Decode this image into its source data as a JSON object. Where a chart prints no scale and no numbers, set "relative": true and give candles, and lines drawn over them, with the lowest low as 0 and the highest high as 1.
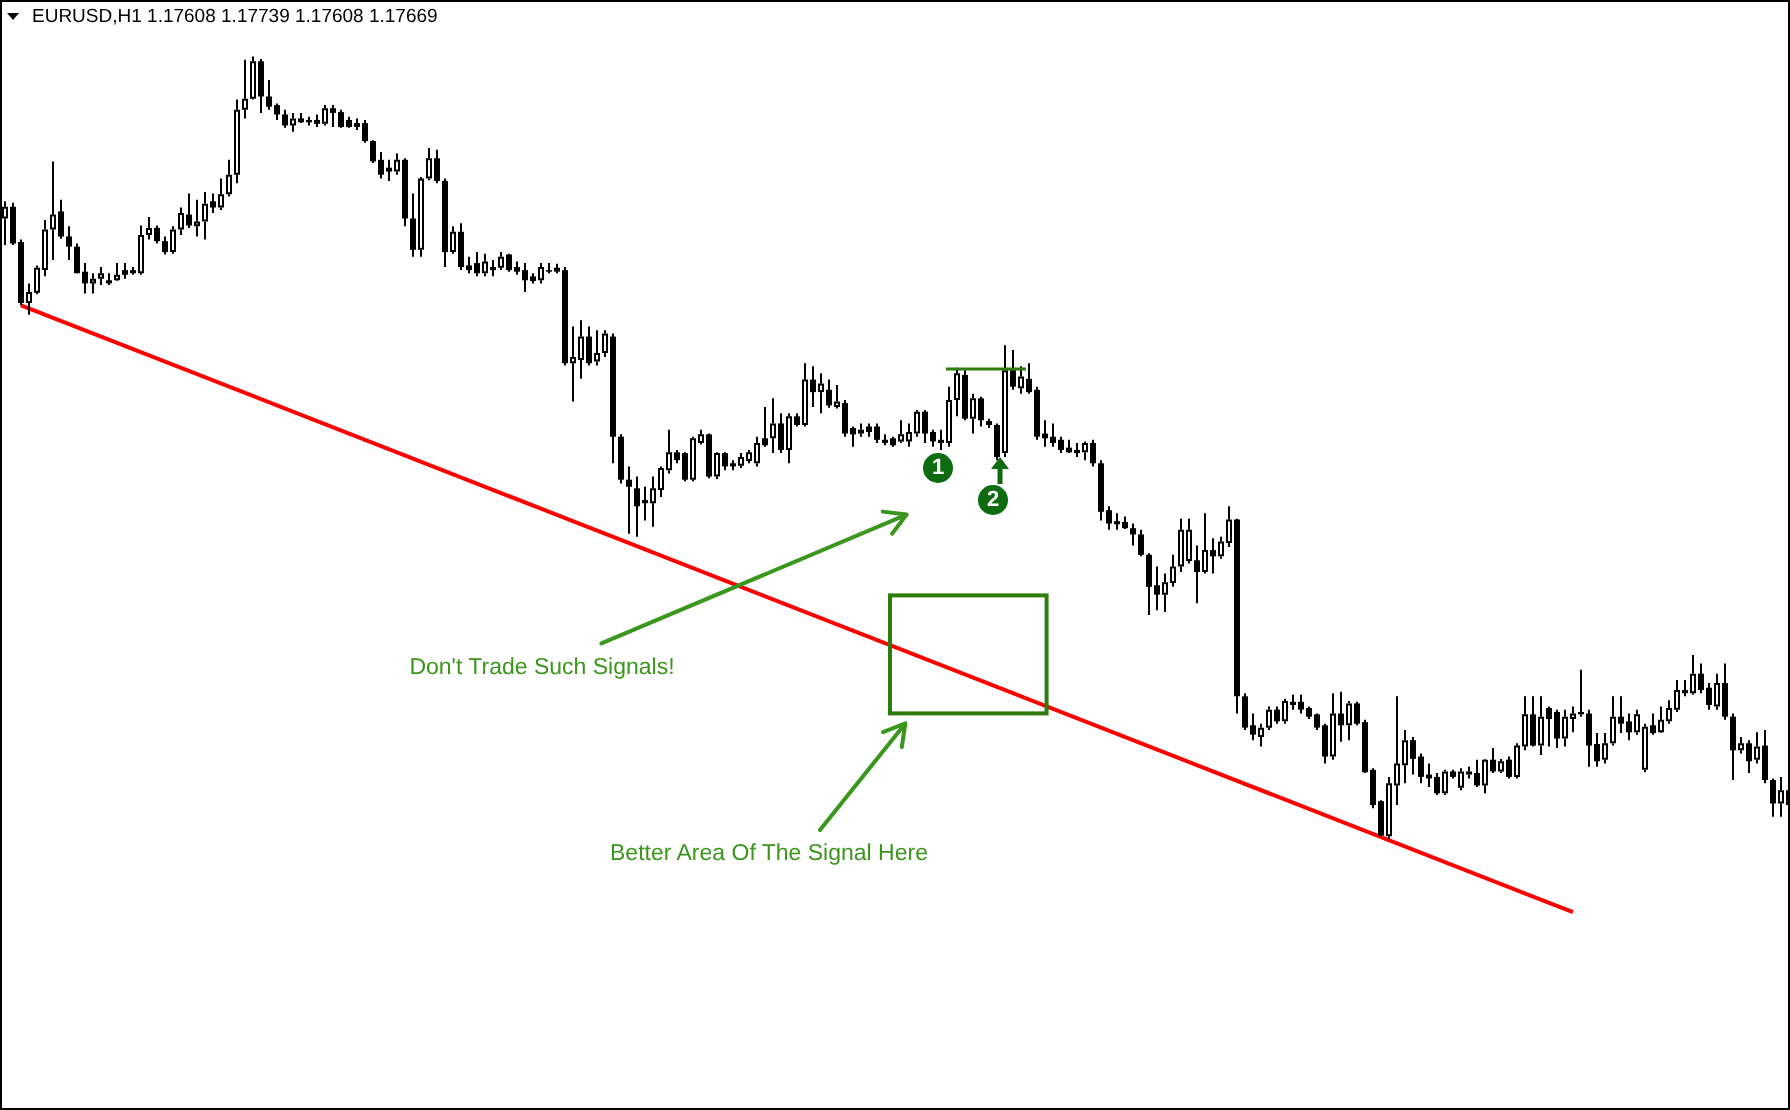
{
  "chart_data": {
    "type": "candlestick",
    "title": "EURUSD,H1 1.17608 1.17739 1.17608 1.17669",
    "relative": true,
    "tick_labels": false,
    "color": "#000000",
    "categories": [
      null,
      null,
      null,
      null,
      null,
      null,
      null,
      null,
      null,
      null,
      null,
      null,
      null,
      null,
      null,
      null,
      null,
      null,
      null,
      null,
      null,
      null,
      null,
      null,
      null,
      null,
      null,
      null,
      null,
      null,
      null,
      null,
      null,
      null,
      null,
      null,
      null,
      null,
      null,
      null,
      null,
      null,
      null,
      null,
      null,
      null,
      null,
      null,
      null,
      null,
      null,
      null,
      null,
      null,
      null,
      null,
      null,
      null,
      null,
      null,
      null,
      null,
      null,
      null,
      null,
      null,
      null,
      null,
      null,
      null,
      null,
      null,
      null,
      null,
      null,
      null,
      null,
      null,
      null,
      null,
      null,
      null,
      null,
      null,
      null,
      null,
      null,
      null,
      null,
      null,
      null,
      null,
      null,
      null,
      null,
      null,
      null,
      null,
      null,
      null,
      null,
      null,
      null,
      null,
      null,
      null,
      null,
      null,
      null,
      null,
      null,
      null,
      null,
      null,
      null,
      null,
      null,
      null,
      null,
      null,
      null,
      null,
      null,
      null,
      null,
      null,
      null,
      null,
      null,
      null,
      null,
      null,
      null,
      null,
      null,
      null,
      null,
      null,
      null,
      null,
      null,
      null,
      null,
      null,
      null,
      null,
      null,
      null,
      null,
      null,
      null,
      null,
      null,
      null,
      null,
      null,
      null,
      null,
      null,
      null,
      null,
      null,
      null,
      null,
      null,
      null,
      null,
      null,
      null,
      null,
      null,
      null,
      null,
      null,
      null,
      null,
      null,
      null,
      null,
      null,
      null,
      null,
      null,
      null,
      null,
      null,
      null,
      null,
      null,
      null,
      null,
      null,
      null,
      null,
      null,
      null,
      null,
      null,
      null,
      null,
      null,
      null,
      null,
      null,
      null,
      null,
      null,
      null,
      null,
      null,
      null,
      null,
      null,
      null,
      null,
      null,
      null,
      null,
      null,
      null,
      null,
      null,
      null,
      null
    ],
    "ohlc": [
      [
        0.793,
        0.815,
        0.759,
        0.808
      ],
      [
        0.808,
        0.813,
        0.759,
        0.761
      ],
      [
        0.763,
        0.766,
        0.682,
        0.685
      ],
      [
        0.685,
        0.71,
        0.67,
        0.699
      ],
      [
        0.698,
        0.733,
        0.696,
        0.73
      ],
      [
        0.727,
        0.791,
        0.719,
        0.779
      ],
      [
        0.779,
        0.866,
        0.74,
        0.798
      ],
      [
        0.802,
        0.817,
        0.767,
        0.77
      ],
      [
        0.77,
        0.783,
        0.74,
        0.757
      ],
      [
        0.757,
        0.761,
        0.723,
        0.723
      ],
      [
        0.725,
        0.736,
        0.697,
        0.71
      ],
      [
        0.71,
        0.723,
        0.697,
        0.716
      ],
      [
        0.716,
        0.731,
        0.708,
        0.723
      ],
      [
        0.714,
        0.723,
        0.708,
        0.71
      ],
      [
        0.714,
        0.736,
        0.713,
        0.721
      ],
      [
        0.727,
        0.736,
        0.716,
        0.721
      ],
      [
        0.727,
        0.731,
        0.721,
        0.723
      ],
      [
        0.723,
        0.784,
        0.721,
        0.772
      ],
      [
        0.772,
        0.795,
        0.766,
        0.781
      ],
      [
        0.781,
        0.784,
        0.761,
        0.764
      ],
      [
        0.764,
        0.77,
        0.747,
        0.75
      ],
      [
        0.75,
        0.783,
        0.748,
        0.779
      ],
      [
        0.779,
        0.807,
        0.772,
        0.8
      ],
      [
        0.798,
        0.825,
        0.781,
        0.784
      ],
      [
        0.783,
        0.817,
        0.77,
        0.789
      ],
      [
        0.789,
        0.827,
        0.766,
        0.812
      ],
      [
        0.815,
        0.825,
        0.8,
        0.807
      ],
      [
        0.807,
        0.844,
        0.804,
        0.824
      ],
      [
        0.824,
        0.868,
        0.821,
        0.849
      ],
      [
        0.849,
        0.945,
        0.838,
        0.932
      ],
      [
        0.932,
        0.996,
        0.921,
        0.946
      ],
      [
        0.946,
        1,
        0.945,
        0.994
      ],
      [
        0.994,
        0.997,
        0.928,
        0.949
      ],
      [
        0.949,
        0.97,
        0.932,
        0.936
      ],
      [
        0.938,
        0.94,
        0.919,
        0.926
      ],
      [
        0.926,
        0.932,
        0.909,
        0.912
      ],
      [
        0.912,
        0.928,
        0.904,
        0.921
      ],
      [
        0.921,
        0.928,
        0.915,
        0.916
      ],
      [
        0.919,
        0.923,
        0.912,
        0.916
      ],
      [
        0.919,
        0.926,
        0.91,
        0.914
      ],
      [
        0.914,
        0.938,
        0.912,
        0.934
      ],
      [
        0.934,
        0.938,
        0.91,
        0.928
      ],
      [
        0.929,
        0.932,
        0.909,
        0.91
      ],
      [
        0.919,
        0.923,
        0.909,
        0.91
      ],
      [
        0.91,
        0.921,
        0.906,
        0.915
      ],
      [
        0.915,
        0.919,
        0.89,
        0.892
      ],
      [
        0.892,
        0.893,
        0.864,
        0.866
      ],
      [
        0.868,
        0.878,
        0.844,
        0.849
      ],
      [
        0.858,
        0.868,
        0.841,
        0.853
      ],
      [
        0.853,
        0.876,
        0.849,
        0.868
      ],
      [
        0.868,
        0.87,
        0.783,
        0.793
      ],
      [
        0.793,
        0.825,
        0.744,
        0.753
      ],
      [
        0.753,
        0.846,
        0.744,
        0.844
      ],
      [
        0.844,
        0.883,
        0.842,
        0.87
      ],
      [
        0.87,
        0.881,
        0.838,
        0.841
      ],
      [
        0.841,
        0.844,
        0.731,
        0.75
      ],
      [
        0.75,
        0.783,
        0.748,
        0.776
      ],
      [
        0.776,
        0.787,
        0.727,
        0.731
      ],
      [
        0.733,
        0.744,
        0.723,
        0.727
      ],
      [
        0.736,
        0.75,
        0.719,
        0.723
      ],
      [
        0.723,
        0.748,
        0.719,
        0.738
      ],
      [
        0.731,
        0.74,
        0.719,
        0.727
      ],
      [
        0.73,
        0.75,
        0.727,
        0.744
      ],
      [
        0.747,
        0.748,
        0.725,
        0.727
      ],
      [
        0.731,
        0.738,
        0.721,
        0.725
      ],
      [
        0.727,
        0.736,
        0.699,
        0.714
      ],
      [
        0.719,
        0.723,
        0.71,
        0.713
      ],
      [
        0.714,
        0.736,
        0.71,
        0.731
      ],
      [
        0.727,
        0.736,
        0.723,
        0.725
      ],
      [
        0.73,
        0.735,
        0.723,
        0.725
      ],
      [
        0.727,
        0.731,
        0.605,
        0.608
      ],
      [
        0.608,
        0.655,
        0.559,
        0.616
      ],
      [
        0.612,
        0.663,
        0.588,
        0.642
      ],
      [
        0.642,
        0.655,
        0.605,
        0.608
      ],
      [
        0.61,
        0.65,
        0.605,
        0.621
      ],
      [
        0.621,
        0.65,
        0.616,
        0.646
      ],
      [
        0.642,
        0.646,
        0.48,
        0.514
      ],
      [
        0.514,
        0.517,
        0.454,
        0.459
      ],
      [
        0.459,
        0.476,
        0.39,
        0.45
      ],
      [
        0.448,
        0.463,
        0.386,
        0.425
      ],
      [
        0.433,
        0.45,
        0.407,
        0.429
      ],
      [
        0.429,
        0.463,
        0.399,
        0.448
      ],
      [
        0.446,
        0.476,
        0.437,
        0.474
      ],
      [
        0.471,
        0.523,
        0.467,
        0.494
      ],
      [
        0.494,
        0.497,
        0.48,
        0.484
      ],
      [
        0.493,
        0.494,
        0.457,
        0.459
      ],
      [
        0.459,
        0.514,
        0.457,
        0.512
      ],
      [
        0.506,
        0.523,
        0.504,
        0.517
      ],
      [
        0.517,
        0.518,
        0.461,
        0.463
      ],
      [
        0.463,
        0.494,
        0.46,
        0.493
      ],
      [
        0.493,
        0.494,
        0.471,
        0.476
      ],
      [
        0.48,
        0.484,
        0.471,
        0.476
      ],
      [
        0.477,
        0.493,
        0.474,
        0.488
      ],
      [
        0.483,
        0.497,
        0.48,
        0.494
      ],
      [
        0.48,
        0.514,
        0.476,
        0.506
      ],
      [
        0.512,
        0.552,
        0.501,
        0.503
      ],
      [
        0.512,
        0.563,
        0.493,
        0.531
      ],
      [
        0.531,
        0.544,
        0.493,
        0.497
      ],
      [
        0.497,
        0.544,
        0.48,
        0.54
      ],
      [
        0.54,
        0.544,
        0.527,
        0.529
      ],
      [
        0.529,
        0.608,
        0.527,
        0.587
      ],
      [
        0.587,
        0.604,
        0.552,
        0.571
      ],
      [
        0.571,
        0.595,
        0.544,
        0.582
      ],
      [
        0.574,
        0.587,
        0.551,
        0.554
      ],
      [
        0.552,
        0.58,
        0.55,
        0.559
      ],
      [
        0.557,
        0.561,
        0.514,
        0.518
      ],
      [
        0.525,
        0.527,
        0.501,
        0.517
      ],
      [
        0.518,
        0.531,
        0.514,
        0.523
      ],
      [
        0.527,
        0.531,
        0.514,
        0.52
      ],
      [
        0.527,
        0.531,
        0.506,
        0.51
      ],
      [
        0.51,
        0.517,
        0.503,
        0.506
      ],
      [
        0.512,
        0.514,
        0.501,
        0.503
      ],
      [
        0.508,
        0.535,
        0.506,
        0.517
      ],
      [
        0.508,
        0.531,
        0.501,
        0.52
      ],
      [
        0.518,
        0.548,
        0.514,
        0.546
      ],
      [
        0.546,
        0.548,
        0.506,
        0.518
      ],
      [
        0.52,
        0.523,
        0.501,
        0.508
      ],
      [
        0.51,
        0.523,
        0.497,
        0.506
      ],
      [
        0.506,
        0.578,
        0.501,
        0.561
      ],
      [
        0.561,
        0.602,
        0.54,
        0.595
      ],
      [
        0.593,
        0.599,
        0.535,
        0.537
      ],
      [
        0.537,
        0.569,
        0.518,
        0.563
      ],
      [
        0.563,
        0.565,
        0.527,
        0.535
      ],
      [
        0.534,
        0.537,
        0.525,
        0.529
      ],
      [
        0.529,
        0.531,
        0.484,
        0.488
      ],
      [
        0.493,
        0.631,
        0.488,
        0.599
      ],
      [
        0.599,
        0.625,
        0.574,
        0.578
      ],
      [
        0.576,
        0.604,
        0.569,
        0.591
      ],
      [
        0.588,
        0.608,
        0.569,
        0.571
      ],
      [
        0.574,
        0.578,
        0.51,
        0.514
      ],
      [
        0.518,
        0.535,
        0.501,
        0.512
      ],
      [
        0.514,
        0.531,
        0.501,
        0.506
      ],
      [
        0.51,
        0.514,
        0.493,
        0.497
      ],
      [
        0.5,
        0.51,
        0.493,
        0.494
      ],
      [
        0.497,
        0.506,
        0.488,
        0.493
      ],
      [
        0.494,
        0.508,
        0.484,
        0.506
      ],
      [
        0.506,
        0.51,
        0.476,
        0.48
      ],
      [
        0.48,
        0.484,
        0.407,
        0.418
      ],
      [
        0.42,
        0.425,
        0.395,
        0.403
      ],
      [
        0.406,
        0.416,
        0.395,
        0.402
      ],
      [
        0.405,
        0.412,
        0.396,
        0.397
      ],
      [
        0.397,
        0.403,
        0.375,
        0.389
      ],
      [
        0.389,
        0.395,
        0.361,
        0.363
      ],
      [
        0.363,
        0.365,
        0.286,
        0.322
      ],
      [
        0.324,
        0.348,
        0.292,
        0.312
      ],
      [
        0.312,
        0.339,
        0.29,
        0.328
      ],
      [
        0.327,
        0.363,
        0.322,
        0.348
      ],
      [
        0.348,
        0.409,
        0.341,
        0.395
      ],
      [
        0.355,
        0.409,
        0.352,
        0.395
      ],
      [
        0.356,
        0.375,
        0.301,
        0.341
      ],
      [
        0.341,
        0.416,
        0.339,
        0.369
      ],
      [
        0.369,
        0.384,
        0.339,
        0.361
      ],
      [
        0.361,
        0.386,
        0.358,
        0.38
      ],
      [
        0.378,
        0.425,
        0.373,
        0.408
      ],
      [
        0.408,
        0.409,
        0.16,
        0.182
      ],
      [
        0.182,
        0.186,
        0.139,
        0.142
      ],
      [
        0.145,
        0.16,
        0.126,
        0.133
      ],
      [
        0.13,
        0.147,
        0.118,
        0.142
      ],
      [
        0.142,
        0.169,
        0.139,
        0.165
      ],
      [
        0.165,
        0.169,
        0.147,
        0.15
      ],
      [
        0.15,
        0.179,
        0.147,
        0.176
      ],
      [
        0.175,
        0.184,
        0.165,
        0.171
      ],
      [
        0.175,
        0.184,
        0.16,
        0.165
      ],
      [
        0.167,
        0.169,
        0.153,
        0.156
      ],
      [
        0.159,
        0.16,
        0.139,
        0.142
      ],
      [
        0.145,
        0.147,
        0.096,
        0.105
      ],
      [
        0.105,
        0.186,
        0.101,
        0.16
      ],
      [
        0.16,
        0.188,
        0.124,
        0.145
      ],
      [
        0.145,
        0.176,
        0.126,
        0.173
      ],
      [
        0.173,
        0.175,
        0.145,
        0.147
      ],
      [
        0.149,
        0.152,
        0.084,
        0.085
      ],
      [
        0.088,
        0.09,
        0.039,
        0.043
      ],
      [
        0.048,
        0.049,
        0.003,
        0.004
      ],
      [
        0.003,
        0.079,
        0,
        0.071
      ],
      [
        0.068,
        0.182,
        0.043,
        0.096
      ],
      [
        0.094,
        0.139,
        0.071,
        0.126
      ],
      [
        0.126,
        0.13,
        0.082,
        0.102
      ],
      [
        0.105,
        0.109,
        0.071,
        0.079
      ],
      [
        0.082,
        0.096,
        0.066,
        0.077
      ],
      [
        0.079,
        0.084,
        0.056,
        0.058
      ],
      [
        0.058,
        0.088,
        0.056,
        0.086
      ],
      [
        0.086,
        0.088,
        0.077,
        0.079
      ],
      [
        0.065,
        0.09,
        0.062,
        0.086
      ],
      [
        0.082,
        0.092,
        0.077,
        0.086
      ],
      [
        0.084,
        0.101,
        0.066,
        0.068
      ],
      [
        0.068,
        0.102,
        0.058,
        0.101
      ],
      [
        0.101,
        0.116,
        0.084,
        0.086
      ],
      [
        0.086,
        0.102,
        0.084,
        0.099
      ],
      [
        0.101,
        0.105,
        0.077,
        0.079
      ],
      [
        0.079,
        0.122,
        0.077,
        0.119
      ],
      [
        0.118,
        0.182,
        0.113,
        0.159
      ],
      [
        0.159,
        0.182,
        0.118,
        0.119
      ],
      [
        0.119,
        0.182,
        0.107,
        0.156
      ],
      [
        0.167,
        0.169,
        0.118,
        0.153
      ],
      [
        0.162,
        0.165,
        0.116,
        0.128
      ],
      [
        0.128,
        0.165,
        0.118,
        0.156
      ],
      [
        0.153,
        0.169,
        0.136,
        0.16
      ],
      [
        0.159,
        0.216,
        0.156,
        0.162
      ],
      [
        0.16,
        0.165,
        0.092,
        0.119
      ],
      [
        0.121,
        0.135,
        0.092,
        0.099
      ],
      [
        0.101,
        0.135,
        0.096,
        0.122
      ],
      [
        0.122,
        0.182,
        0.119,
        0.156
      ],
      [
        0.156,
        0.182,
        0.135,
        0.147
      ],
      [
        0.15,
        0.16,
        0.126,
        0.136
      ],
      [
        0.136,
        0.165,
        0.133,
        0.159
      ],
      [
        0.088,
        0.147,
        0.085,
        0.143
      ],
      [
        0.145,
        0.16,
        0.133,
        0.135
      ],
      [
        0.136,
        0.169,
        0.135,
        0.152
      ],
      [
        0.15,
        0.177,
        0.147,
        0.167
      ],
      [
        0.165,
        0.203,
        0.162,
        0.19
      ],
      [
        0.19,
        0.203,
        0.182,
        0.186
      ],
      [
        0.186,
        0.235,
        0.184,
        0.211
      ],
      [
        0.211,
        0.224,
        0.186,
        0.19
      ],
      [
        0.193,
        0.199,
        0.165,
        0.171
      ],
      [
        0.169,
        0.211,
        0.165,
        0.199
      ],
      [
        0.199,
        0.224,
        0.152,
        0.156
      ],
      [
        0.156,
        0.16,
        0.075,
        0.113
      ],
      [
        0.113,
        0.13,
        0.109,
        0.122
      ],
      [
        0.122,
        0.126,
        0.084,
        0.099
      ],
      [
        0.101,
        0.136,
        0.096,
        0.118
      ],
      [
        0.119,
        0.139,
        0.071,
        0.075
      ],
      [
        0.075,
        0.077,
        0.028,
        0.045
      ],
      [
        0.045,
        0.079,
        0.028,
        0.062
      ],
      [
        0.062,
        0.109,
        0.041,
        0.043
      ]
    ],
    "colors": [
      "#ffffff",
      "#000000",
      "#000000",
      "#ffffff",
      "#ffffff",
      "#ffffff",
      "#ffffff",
      "#000000",
      "#000000",
      "#000000",
      "#000000",
      "#ffffff",
      "#ffffff",
      "#000000",
      "#ffffff",
      "#000000",
      "#000000",
      "#ffffff",
      "#ffffff",
      "#000000",
      "#000000",
      "#ffffff",
      "#ffffff",
      "#000000",
      "#ffffff",
      "#ffffff",
      "#000000",
      "#ffffff",
      "#ffffff",
      "#ffffff",
      "#ffffff",
      "#ffffff",
      "#000000",
      "#000000",
      "#000000",
      "#000000",
      "#ffffff",
      "#000000",
      "#000000",
      "#000000",
      "#ffffff",
      "#000000",
      "#000000",
      "#000000",
      "#ffffff",
      "#000000",
      "#000000",
      "#000000",
      "#000000",
      "#ffffff",
      "#000000",
      "#000000",
      "#ffffff",
      "#ffffff",
      "#000000",
      "#000000",
      "#ffffff",
      "#000000",
      "#000000",
      "#000000",
      "#ffffff",
      "#000000",
      "#ffffff",
      "#000000",
      "#000000",
      "#000000",
      "#000000",
      "#ffffff",
      "#000000",
      "#000000",
      "#000000",
      "#ffffff",
      "#ffffff",
      "#000000",
      "#ffffff",
      "#ffffff",
      "#000000",
      "#000000",
      "#000000",
      "#000000",
      "#000000",
      "#ffffff",
      "#ffffff",
      "#ffffff",
      "#000000",
      "#000000",
      "#ffffff",
      "#ffffff",
      "#000000",
      "#ffffff",
      "#000000",
      "#000000",
      "#ffffff",
      "#ffffff",
      "#ffffff",
      "#000000",
      "#ffffff",
      "#000000",
      "#ffffff",
      "#000000",
      "#ffffff",
      "#000000",
      "#ffffff",
      "#000000",
      "#ffffff",
      "#000000",
      "#000000",
      "#ffffff",
      "#000000",
      "#000000",
      "#000000",
      "#000000",
      "#ffffff",
      "#ffffff",
      "#ffffff",
      "#000000",
      "#000000",
      "#000000",
      "#ffffff",
      "#ffffff",
      "#000000",
      "#ffffff",
      "#000000",
      "#000000",
      "#000000",
      "#ffffff",
      "#000000",
      "#ffffff",
      "#000000",
      "#000000",
      "#000000",
      "#000000",
      "#000000",
      "#000000",
      "#000000",
      "#ffffff",
      "#000000",
      "#000000",
      "#000000",
      "#000000",
      "#000000",
      "#000000",
      "#000000",
      "#000000",
      "#000000",
      "#ffffff",
      "#ffffff",
      "#ffffff",
      "#ffffff",
      "#000000",
      "#ffffff",
      "#000000",
      "#ffffff",
      "#ffffff",
      "#000000",
      "#000000",
      "#000000",
      "#ffffff",
      "#ffffff",
      "#000000",
      "#ffffff",
      "#000000",
      "#000000",
      "#000000",
      "#000000",
      "#000000",
      "#ffffff",
      "#000000",
      "#ffffff",
      "#000000",
      "#000000",
      "#000000",
      "#000000",
      "#ffffff",
      "#ffffff",
      "#ffffff",
      "#000000",
      "#000000",
      "#000000",
      "#000000",
      "#ffffff",
      "#000000",
      "#ffffff",
      "#ffffff",
      "#000000",
      "#ffffff",
      "#000000",
      "#ffffff",
      "#000000",
      "#ffffff",
      "#ffffff",
      "#000000",
      "#ffffff",
      "#000000",
      "#000000",
      "#ffffff",
      "#ffffff",
      "#ffffff",
      "#000000",
      "#000000",
      "#ffffff",
      "#ffffff",
      "#000000",
      "#000000",
      "#ffffff",
      "#ffffff",
      "#000000",
      "#ffffff",
      "#ffffff",
      "#ffffff",
      "#000000",
      "#ffffff",
      "#000000",
      "#000000",
      "#ffffff",
      "#000000",
      "#000000",
      "#ffffff",
      "#000000",
      "#ffffff",
      "#000000",
      "#000000",
      "#ffffff",
      "#000000"
    ],
    "series": [
      {
        "type": "line",
        "color": "#ff0000",
        "marker": "none",
        "values": [
          null,
          null,
          0.682,
          null,
          null,
          null,
          null,
          null,
          null,
          null,
          null,
          null,
          null,
          null,
          null,
          null,
          null,
          null,
          null,
          null,
          null,
          null,
          null,
          null,
          null,
          null,
          null,
          null,
          null,
          null,
          null,
          null,
          null,
          null,
          null,
          null,
          null,
          null,
          null,
          null,
          null,
          null,
          null,
          null,
          null,
          null,
          null,
          null,
          null,
          null,
          null,
          null,
          null,
          null,
          null,
          null,
          null,
          null,
          null,
          null,
          null,
          null,
          null,
          null,
          null,
          null,
          null,
          null,
          null,
          null,
          null,
          null,
          null,
          null,
          null,
          null,
          null,
          null,
          null,
          null,
          null,
          null,
          null,
          null,
          null,
          null,
          null,
          null,
          null,
          null,
          null,
          null,
          null,
          null,
          null,
          null,
          null,
          null,
          null,
          null,
          null,
          null,
          null,
          null,
          null,
          null,
          null,
          null,
          null,
          null,
          null,
          null,
          null,
          null,
          null,
          null,
          null,
          null,
          null,
          null,
          null,
          null,
          null,
          null,
          null,
          null,
          null,
          null,
          null,
          null,
          null,
          null,
          null,
          null,
          null,
          null,
          null,
          null,
          null,
          null,
          null,
          null,
          null,
          null,
          null,
          null,
          null,
          null,
          null,
          null,
          null,
          null,
          null,
          null,
          null,
          null,
          null,
          null,
          null,
          null,
          null,
          null,
          null,
          null,
          null,
          null,
          null,
          null,
          null,
          null,
          null,
          null,
          null,
          null,
          null,
          null,
          null,
          null,
          null,
          null,
          null,
          null,
          null,
          null,
          null,
          null,
          null,
          null,
          null,
          null,
          null,
          null,
          null,
          null,
          null,
          null,
          -0.094,
          null,
          null,
          null,
          null,
          null,
          null,
          null,
          null,
          null,
          null,
          null,
          null,
          null,
          null,
          null,
          null,
          null,
          null,
          null,
          null,
          null,
          null,
          null,
          null,
          null,
          null,
          null
        ]
      }
    ],
    "annotations": [
      "Don't Trade Such Signals!",
      "Better Area Of The Signal Here",
      "1",
      "2"
    ]
  }
}
